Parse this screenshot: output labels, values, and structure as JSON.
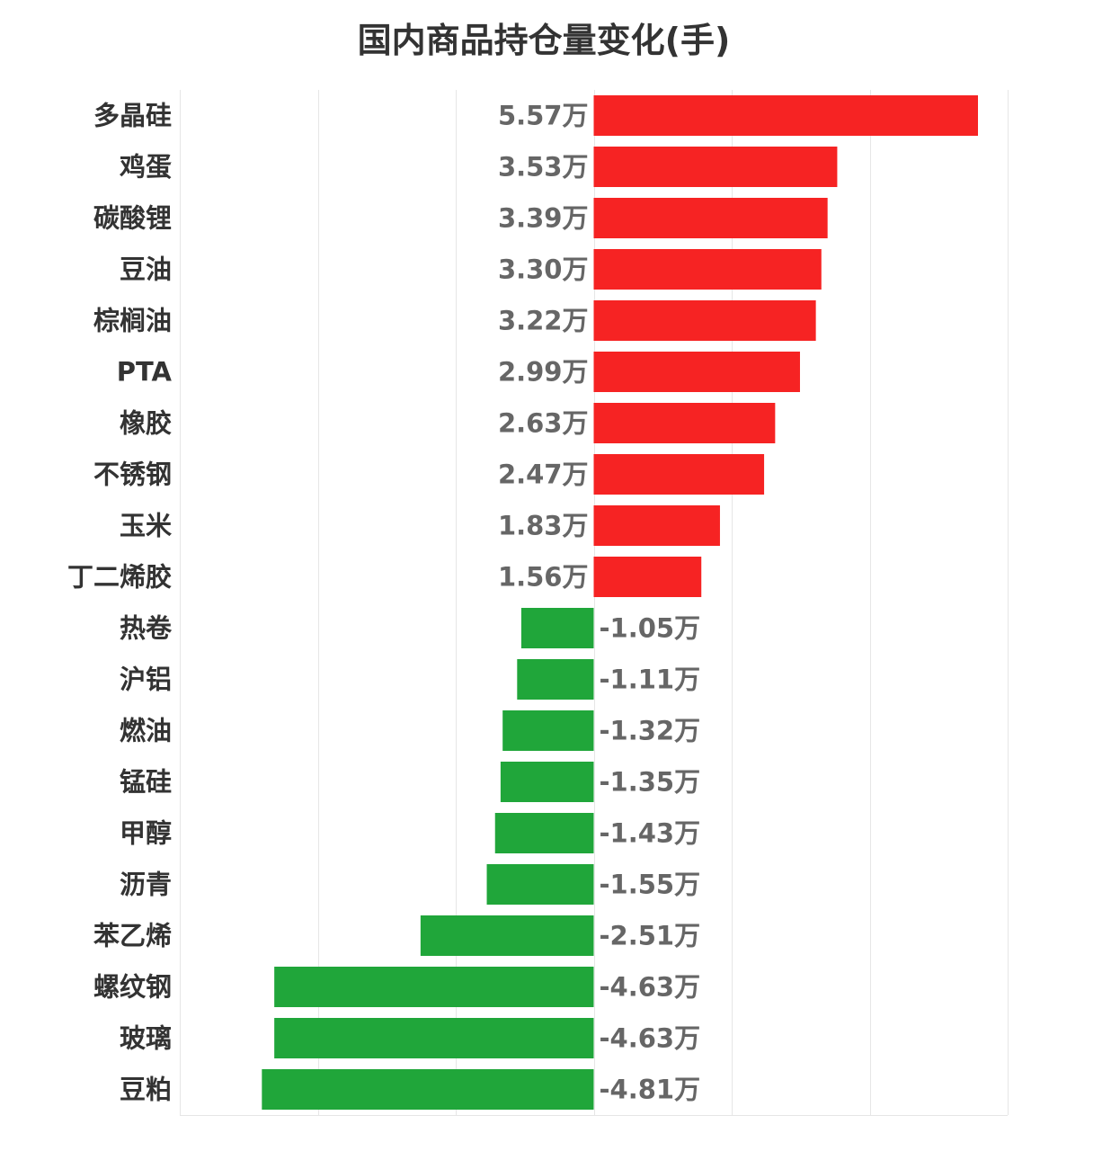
{
  "chart_data": {
    "type": "bar",
    "orientation": "horizontal",
    "title": "国内商品持仓量变化(手)",
    "categories": [
      "多晶硅",
      "鸡蛋",
      "碳酸锂",
      "豆油",
      "棕榈油",
      "PTA",
      "橡胶",
      "不锈钢",
      "玉米",
      "丁二烯胶",
      "热卷",
      "沪铝",
      "燃油",
      "锰硅",
      "甲醇",
      "沥青",
      "苯乙烯",
      "螺纹钢",
      "玻璃",
      "豆粕"
    ],
    "values": [
      55700,
      35300,
      33900,
      33000,
      32200,
      29900,
      26300,
      24700,
      18300,
      15600,
      -10500,
      -11100,
      -13200,
      -13500,
      -14300,
      -15500,
      -25100,
      -46300,
      -46300,
      -48100
    ],
    "value_labels": [
      "5.57万",
      "3.53万",
      "3.39万",
      "3.30万",
      "3.22万",
      "2.99万",
      "2.63万",
      "2.47万",
      "1.83万",
      "1.56万",
      "-1.05万",
      "-1.11万",
      "-1.32万",
      "-1.35万",
      "-1.43万",
      "-1.55万",
      "-2.51万",
      "-4.63万",
      "-4.63万",
      "-4.81万"
    ],
    "xlim": [
      -60000,
      60000
    ],
    "grid": true,
    "colors": {
      "positive": "#f62323",
      "negative": "#20a63a",
      "grid": "#e6e6e6",
      "category_text": "#333333",
      "value_text": "#666666"
    }
  }
}
